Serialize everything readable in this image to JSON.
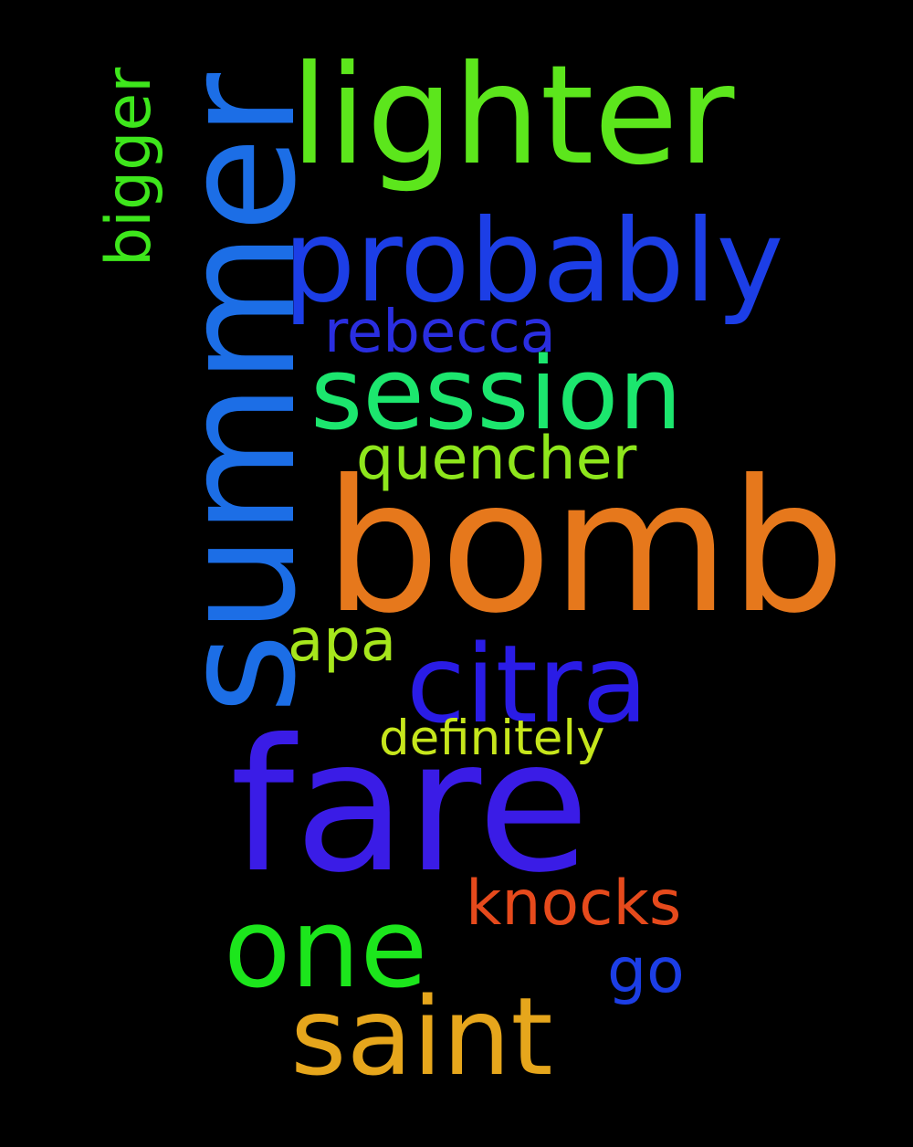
{
  "words": [
    {
      "text": "summer",
      "color": "#1c6ee6",
      "orientation": "vertical"
    },
    {
      "text": "lighter",
      "color": "#5ce61c",
      "orientation": "horizontal"
    },
    {
      "text": "probably",
      "color": "#1c3ee6",
      "orientation": "horizontal"
    },
    {
      "text": "rebecca",
      "color": "#2a2ee0",
      "orientation": "horizontal"
    },
    {
      "text": "session",
      "color": "#1ce66e",
      "orientation": "horizontal"
    },
    {
      "text": "quencher",
      "color": "#8ee61c",
      "orientation": "horizontal"
    },
    {
      "text": "bomb",
      "color": "#e6781c",
      "orientation": "horizontal"
    },
    {
      "text": "bigger",
      "color": "#3ee61c",
      "orientation": "vertical"
    },
    {
      "text": "apa",
      "color": "#a6e61c",
      "orientation": "horizontal"
    },
    {
      "text": "citra",
      "color": "#2a1ce6",
      "orientation": "horizontal"
    },
    {
      "text": "definitely",
      "color": "#c6e61c",
      "orientation": "horizontal"
    },
    {
      "text": "fare",
      "color": "#3a1ce6",
      "orientation": "horizontal"
    },
    {
      "text": "knocks",
      "color": "#e64a1c",
      "orientation": "horizontal"
    },
    {
      "text": "one",
      "color": "#1ce61c",
      "orientation": "horizontal"
    },
    {
      "text": "go",
      "color": "#1c3ee6",
      "orientation": "horizontal"
    },
    {
      "text": "saint",
      "color": "#e6a61c",
      "orientation": "horizontal"
    }
  ]
}
